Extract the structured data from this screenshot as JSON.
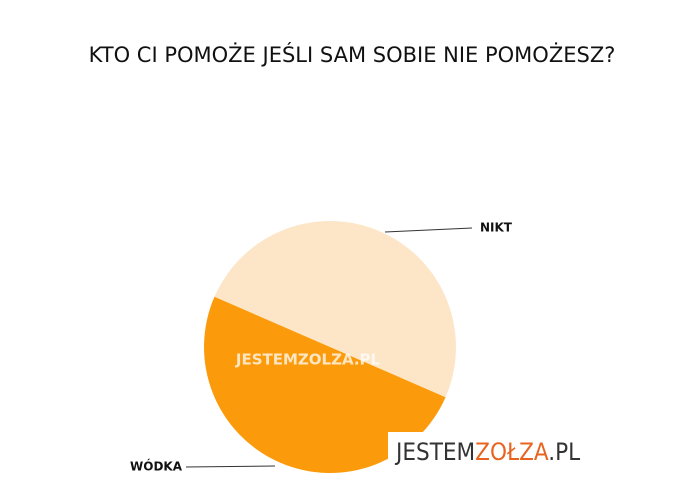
{
  "chart_data": {
    "type": "pie",
    "title": "KTO CI POMOŻE JEŚLI SAM SOBIE NIE POMOŻESZ?",
    "categories": [
      "NIKT",
      "WÓDKA"
    ],
    "values": [
      50,
      50
    ],
    "colors": [
      "#fde6c8",
      "#fb9b0c"
    ]
  },
  "watermark": "JESTEMZOLZA.PL",
  "logo": {
    "part1": "JESTEM",
    "part2": "ZOŁZA",
    "part3": ".PL"
  }
}
